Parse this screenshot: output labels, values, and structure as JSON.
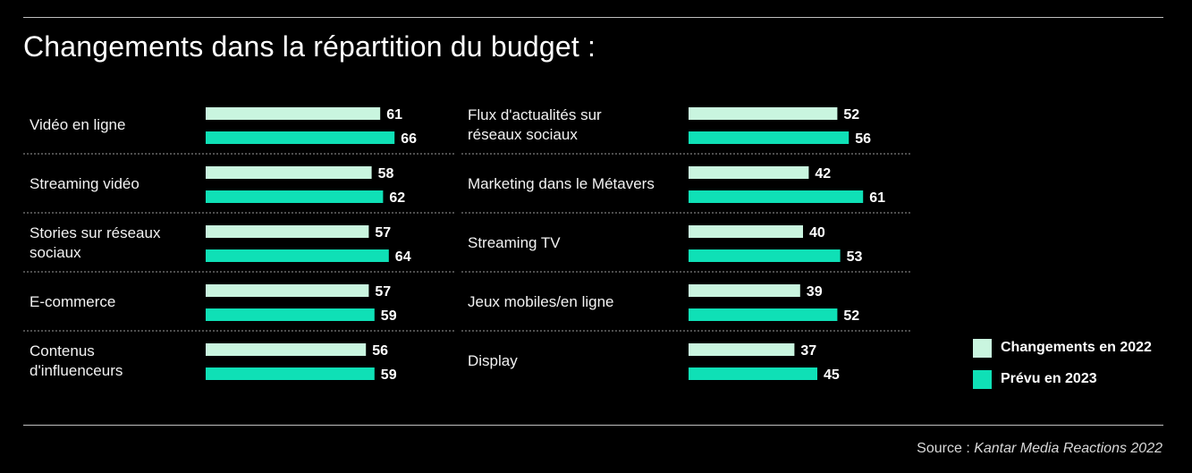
{
  "title": "Changements dans la répartition du budget :",
  "source": {
    "prefix": "Source : ",
    "name": "Kantar Media Reactions 2022"
  },
  "colors": {
    "changements_2022": "#c9f5df",
    "prevu_2023": "#0fe0b6",
    "background": "#000000",
    "separator": "#9a9a9a"
  },
  "legend": [
    {
      "label": "Changements en 2022",
      "color": "#c9f5df"
    },
    {
      "label": "Prévu en 2023",
      "color": "#0fe0b6"
    }
  ],
  "chart_data": [
    {
      "type": "bar",
      "orientation": "horizontal",
      "categories": [
        [
          "Vidéo en ligne"
        ],
        [
          "Streaming vidéo"
        ],
        [
          "Stories sur réseaux",
          "sociaux"
        ],
        [
          "E-commerce"
        ],
        [
          "Contenus",
          "d'influenceurs"
        ]
      ],
      "series": [
        {
          "name": "Changements en 2022",
          "values": [
            61,
            58,
            57,
            57,
            56
          ]
        },
        {
          "name": "Prévu en 2023",
          "values": [
            66,
            62,
            64,
            59,
            59
          ]
        }
      ],
      "legend_position": "right"
    },
    {
      "type": "bar",
      "orientation": "horizontal",
      "categories": [
        [
          "Flux d'actualités sur",
          "réseaux sociaux"
        ],
        [
          "Marketing dans le Métavers"
        ],
        [
          "Streaming TV"
        ],
        [
          "Jeux mobiles/en ligne"
        ],
        [
          "Display"
        ]
      ],
      "series": [
        {
          "name": "Changements en 2022",
          "values": [
            52,
            42,
            40,
            39,
            37
          ]
        },
        {
          "name": "Prévu en 2023",
          "values": [
            56,
            61,
            53,
            52,
            45
          ]
        }
      ],
      "legend_position": "right"
    }
  ]
}
